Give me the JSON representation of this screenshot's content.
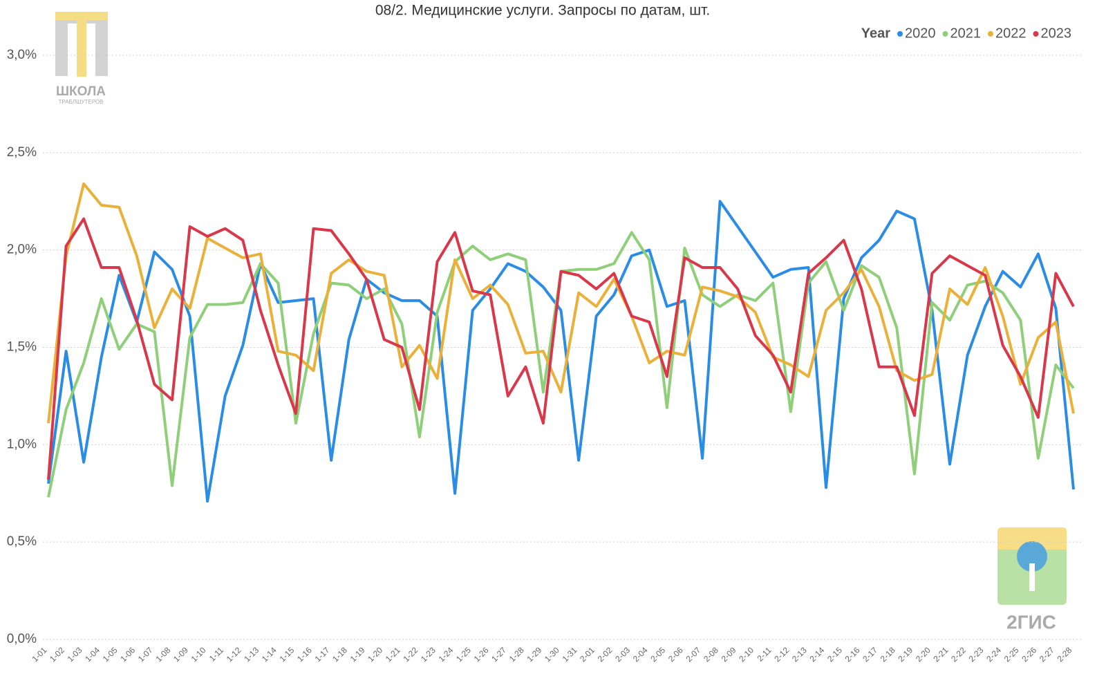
{
  "chart_data": {
    "type": "line",
    "title": "08/2. Медицинские услуги. Запросы по датам, шт.",
    "legend_title": "Year",
    "legend_position": "top-right",
    "grid": true,
    "annotations": [
      "ШКОЛА",
      "ТРАБЛШУТЕРОВ",
      "2ГИС"
    ],
    "categories": [
      "1-01",
      "1-02",
      "1-03",
      "1-04",
      "1-05",
      "1-06",
      "1-07",
      "1-08",
      "1-09",
      "1-10",
      "1-11",
      "1-12",
      "1-13",
      "1-14",
      "1-15",
      "1-16",
      "1-17",
      "1-18",
      "1-19",
      "1-20",
      "1-21",
      "1-22",
      "1-23",
      "1-24",
      "1-25",
      "1-26",
      "1-27",
      "1-28",
      "1-29",
      "1-30",
      "1-31",
      "2-01",
      "2-02",
      "2-03",
      "2-04",
      "2-05",
      "2-06",
      "2-07",
      "2-08",
      "2-09",
      "2-10",
      "2-11",
      "2-12",
      "2-13",
      "2-14",
      "2-15",
      "2-16",
      "2-17",
      "2-18",
      "2-19",
      "2-20",
      "2-21",
      "2-22",
      "2-23",
      "2-24",
      "2-25",
      "2-26",
      "2-27",
      "2-28"
    ],
    "ylim": [
      0,
      3
    ],
    "yticks": [
      {
        "value": 0,
        "label": "0,0%"
      },
      {
        "value": 0.5,
        "label": "0,5%"
      },
      {
        "value": 1,
        "label": "1,0%"
      },
      {
        "value": 1.5,
        "label": "1,5%"
      },
      {
        "value": 2,
        "label": "2,0%"
      },
      {
        "value": 2.5,
        "label": "2,5%"
      },
      {
        "value": 3,
        "label": "3,0%"
      }
    ],
    "series": [
      {
        "name": "2020",
        "color": "#2b8ce6",
        "values": [
          0.8,
          1.48,
          0.91,
          1.45,
          1.87,
          1.63,
          1.99,
          1.9,
          1.66,
          0.71,
          1.25,
          1.51,
          1.93,
          1.73,
          1.74,
          1.75,
          0.92,
          1.54,
          1.85,
          1.78,
          1.74,
          1.74,
          1.66,
          0.75,
          1.69,
          1.8,
          1.93,
          1.89,
          1.81,
          1.69,
          0.92,
          1.66,
          1.77,
          1.97,
          2.0,
          1.71,
          1.74,
          0.93,
          2.25,
          2.12,
          1.99,
          1.86,
          1.9,
          1.91,
          0.78,
          1.75,
          1.96,
          2.05,
          2.2,
          2.16,
          1.69,
          0.9,
          1.46,
          1.71,
          1.89,
          1.81,
          1.98,
          1.7,
          0.77
        ]
      },
      {
        "name": "2021",
        "color": "#8fcf7a",
        "values": [
          0.73,
          1.18,
          1.42,
          1.75,
          1.49,
          1.62,
          1.58,
          0.79,
          1.55,
          1.72,
          1.72,
          1.73,
          1.93,
          1.83,
          1.11,
          1.57,
          1.83,
          1.82,
          1.75,
          1.8,
          1.62,
          1.04,
          1.68,
          1.94,
          2.02,
          1.95,
          1.98,
          1.95,
          1.27,
          1.89,
          1.9,
          1.9,
          1.93,
          2.09,
          1.95,
          1.19,
          2.01,
          1.77,
          1.71,
          1.77,
          1.74,
          1.83,
          1.17,
          1.83,
          1.94,
          1.69,
          1.92,
          1.86,
          1.6,
          0.85,
          1.73,
          1.64,
          1.82,
          1.84,
          1.78,
          1.64,
          0.93,
          1.41,
          1.29
        ]
      },
      {
        "name": "2022",
        "color": "#eab13a",
        "values": [
          1.11,
          1.97,
          2.34,
          2.23,
          2.22,
          1.97,
          1.6,
          1.8,
          1.7,
          2.06,
          2.01,
          1.96,
          1.98,
          1.48,
          1.46,
          1.38,
          1.88,
          1.95,
          1.89,
          1.87,
          1.4,
          1.51,
          1.34,
          1.95,
          1.75,
          1.82,
          1.72,
          1.47,
          1.48,
          1.27,
          1.78,
          1.71,
          1.85,
          1.66,
          1.42,
          1.48,
          1.46,
          1.81,
          1.79,
          1.76,
          1.68,
          1.45,
          1.41,
          1.35,
          1.69,
          1.78,
          1.9,
          1.71,
          1.38,
          1.33,
          1.36,
          1.8,
          1.72,
          1.91,
          1.66,
          1.31,
          1.55,
          1.63,
          1.16
        ]
      },
      {
        "name": "2023",
        "color": "#d9384a",
        "values": [
          0.82,
          2.02,
          2.16,
          1.91,
          1.91,
          1.64,
          1.31,
          1.23,
          2.12,
          2.07,
          2.11,
          2.05,
          1.69,
          1.41,
          1.16,
          2.11,
          2.1,
          1.98,
          1.85,
          1.54,
          1.5,
          1.18,
          1.94,
          2.09,
          1.79,
          1.77,
          1.25,
          1.4,
          1.11,
          1.89,
          1.87,
          1.8,
          1.88,
          1.66,
          1.63,
          1.35,
          1.96,
          1.91,
          1.91,
          1.8,
          1.56,
          1.46,
          1.27,
          1.88,
          1.96,
          2.05,
          1.8,
          1.4,
          1.4,
          1.15,
          1.88,
          1.97,
          1.92,
          1.87,
          1.51,
          1.35,
          1.14,
          1.88,
          1.71
        ]
      }
    ]
  }
}
